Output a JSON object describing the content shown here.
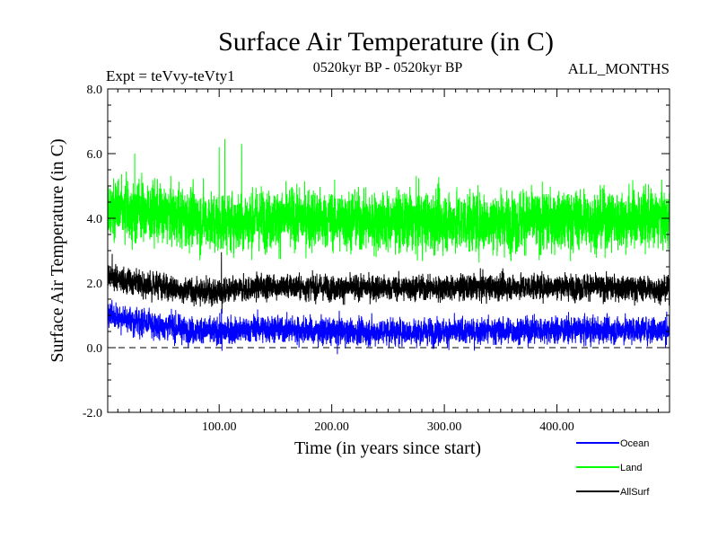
{
  "chart_data": {
    "type": "line",
    "title": "Surface Air Temperature (in C)",
    "subtitle_left": "Expt = teVvy-teVty1",
    "subtitle_center": "0520kyr BP - 0520kyr BP",
    "subtitle_right": "ALL_MONTHS",
    "xlabel": "Time (in years since start)",
    "ylabel": "Surface Air Temperature (in C)",
    "xlim": [
      1,
      500
    ],
    "ylim": [
      -2.0,
      8.0
    ],
    "x_ticks": [
      100,
      200,
      300,
      400
    ],
    "x_tick_labels": [
      "100.00",
      "200.00",
      "300.00",
      "400.00"
    ],
    "y_ticks": [
      -2,
      0,
      2,
      4,
      6,
      8
    ],
    "y_tick_labels": [
      "-2.0",
      "0.0",
      "2.0",
      "4.0",
      "6.0",
      "8.0"
    ],
    "zero_line": 0.0,
    "series": [
      {
        "name": "Land",
        "color": "#00ff00",
        "samples_per_year": 12,
        "mean": 4.0,
        "noise": 0.62,
        "min": 1.6,
        "max": 6.45,
        "mean_segments": [
          [
            1,
            4.3
          ],
          [
            60,
            4.1
          ],
          [
            100,
            3.9
          ],
          [
            160,
            4.0
          ],
          [
            250,
            3.9
          ],
          [
            350,
            3.9
          ],
          [
            500,
            4.0
          ]
        ],
        "spikes": [
          [
            100,
            6.2
          ],
          [
            105,
            6.45
          ],
          [
            120,
            6.3
          ],
          [
            25,
            6.0
          ]
        ]
      },
      {
        "name": "AllSurf",
        "color": "#000000",
        "samples_per_year": 12,
        "mean": 1.85,
        "noise": 0.26,
        "min": 1.0,
        "max": 3.0,
        "mean_segments": [
          [
            1,
            2.2
          ],
          [
            30,
            2.0
          ],
          [
            60,
            1.8
          ],
          [
            100,
            1.7
          ],
          [
            140,
            1.9
          ],
          [
            200,
            1.85
          ],
          [
            300,
            1.85
          ],
          [
            400,
            1.9
          ],
          [
            500,
            1.8
          ]
        ],
        "spikes": [
          [
            5,
            2.9
          ],
          [
            102,
            2.95
          ],
          [
            102.5,
            1.05
          ]
        ]
      },
      {
        "name": "Ocean",
        "color": "#0000ff",
        "samples_per_year": 12,
        "mean": 0.55,
        "noise": 0.27,
        "min": -0.25,
        "max": 1.6,
        "mean_segments": [
          [
            1,
            1.0
          ],
          [
            30,
            0.8
          ],
          [
            70,
            0.55
          ],
          [
            100,
            0.5
          ],
          [
            140,
            0.6
          ],
          [
            200,
            0.5
          ],
          [
            300,
            0.5
          ],
          [
            400,
            0.55
          ],
          [
            500,
            0.55
          ]
        ],
        "spikes": [
          [
            102,
            1.2
          ],
          [
            102.5,
            -0.1
          ],
          [
            205,
            -0.2
          ]
        ]
      }
    ],
    "legend": {
      "placement": "bottom-right",
      "entries": [
        {
          "label": "Ocean",
          "color": "#0000ff"
        },
        {
          "label": "Land",
          "color": "#00ff00"
        },
        {
          "label": "AllSurf",
          "color": "#000000"
        }
      ]
    }
  }
}
